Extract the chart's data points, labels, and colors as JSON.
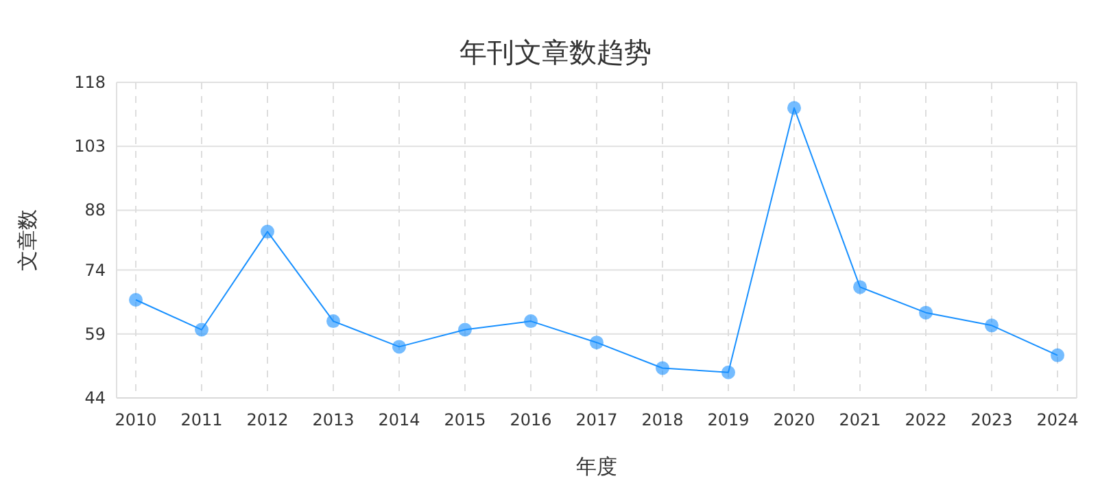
{
  "chart_data": {
    "type": "line",
    "title": "年刊文章数趋势",
    "xlabel": "年度",
    "ylabel": "文章数",
    "categories": [
      "2010",
      "2011",
      "2012",
      "2013",
      "2014",
      "2015",
      "2016",
      "2017",
      "2018",
      "2019",
      "2020",
      "2021",
      "2022",
      "2023",
      "2024"
    ],
    "series": [
      {
        "color": "#1890ff",
        "values": [
          67,
          60,
          83,
          62,
          56,
          60,
          62,
          57,
          51,
          50,
          112,
          70,
          64,
          61,
          54
        ]
      }
    ],
    "ylim": [
      44,
      118
    ],
    "yticks": [
      44,
      59,
      74,
      88,
      103,
      118
    ],
    "grid": true,
    "marker": "circle"
  }
}
